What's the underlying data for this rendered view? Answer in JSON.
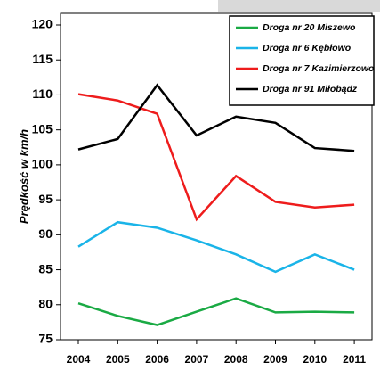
{
  "chart_data": {
    "type": "line",
    "y_label": "Prędkość w km/h",
    "categories": [
      "2004",
      "2005",
      "2006",
      "2007",
      "2008",
      "2009",
      "2010",
      "2011"
    ],
    "series": [
      {
        "name": "Droga nr 20 Miszewo",
        "color": "#1aaa44",
        "values": [
          80.2,
          78.4,
          77.1,
          79.0,
          80.9,
          78.9,
          79.0,
          78.9
        ]
      },
      {
        "name": "Droga nr 6 Kębłowo",
        "color": "#1ab4e8",
        "values": [
          88.3,
          91.8,
          91.0,
          89.2,
          87.2,
          84.7,
          87.2,
          85.0
        ]
      },
      {
        "name": "Droga nr 7 Kazimierzowo",
        "color": "#ee1c1c",
        "values": [
          110.1,
          109.2,
          107.3,
          92.2,
          98.4,
          94.7,
          93.9,
          94.3
        ]
      },
      {
        "name": "Droga nr 91 Miłobądz",
        "color": "#000000",
        "values": [
          102.2,
          103.7,
          111.4,
          104.2,
          106.9,
          106.0,
          102.4,
          102.0
        ]
      }
    ],
    "ylim": [
      75,
      120
    ],
    "yticks": [
      75,
      80,
      85,
      90,
      95,
      100,
      105,
      110,
      115,
      120
    ],
    "legend": "upper right"
  }
}
